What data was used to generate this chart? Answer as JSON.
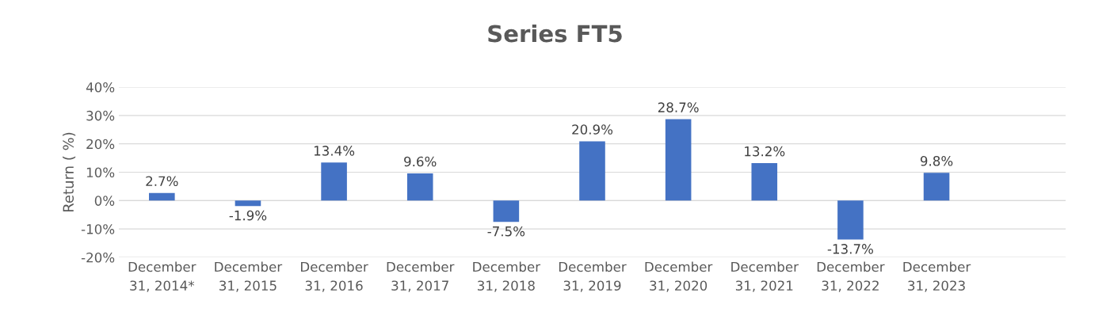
{
  "chart_data": {
    "type": "bar",
    "title": "Series FT5",
    "ylabel": "Return ( %)",
    "categories": [
      "December 31, 2014*",
      "December 31, 2015",
      "December 31, 2016",
      "December 31, 2017",
      "December 31, 2018",
      "December 31, 2019",
      "December 31, 2020",
      "December 31, 2021",
      "December 31, 2022",
      "December 31, 2023",
      null
    ],
    "values": [
      2.7,
      -1.9,
      13.4,
      9.6,
      -7.5,
      20.9,
      28.7,
      13.2,
      -13.7,
      9.8,
      null
    ],
    "value_labels": [
      "2.7%",
      "-1.9%",
      "13.4%",
      "9.6%",
      "-7.5%",
      "20.9%",
      "28.7%",
      "13.2%",
      "-13.7%",
      "9.8%",
      null
    ],
    "color": "#4472c4",
    "ylim": [
      -20,
      40
    ],
    "yticks": [
      {
        "value": -20,
        "label": "-20%"
      },
      {
        "value": -10,
        "label": "-10%"
      },
      {
        "value": 0,
        "label": "0%"
      },
      {
        "value": 10,
        "label": "10%"
      },
      {
        "value": 20,
        "label": "20%"
      },
      {
        "value": 30,
        "label": "30%"
      },
      {
        "value": 40,
        "label": "40%"
      }
    ],
    "grid": "y"
  }
}
